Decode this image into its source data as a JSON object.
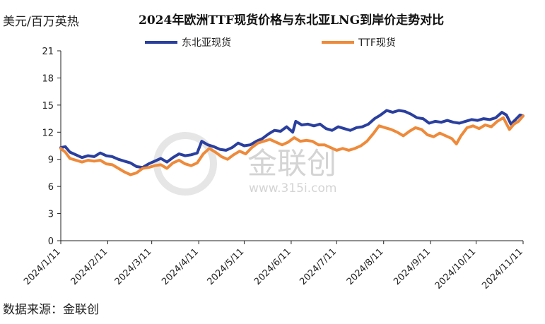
{
  "title": "2024年欧洲TTF现货价格与东北亚LNG到岸价走势对比",
  "unit_label": "美元/百万英热",
  "source": "数据来源：金联创",
  "watermark": {
    "name": "金联创",
    "url": "www.315i.com"
  },
  "colors": {
    "series1": "#2a3f9e",
    "series2": "#ee8a3a",
    "axis": "#222222",
    "watermark": "#cfcfcf"
  },
  "chart_data": {
    "type": "line",
    "title": "2024年欧洲TTF现货价格与东北亚LNG到岸价走势对比",
    "ylabel": "美元/百万英热",
    "xlabel": "",
    "ylim": [
      0,
      21
    ],
    "yticks": [
      0,
      3,
      6,
      9,
      12,
      15,
      18,
      21
    ],
    "xlim": [
      "2024-01-11",
      "2024-11-11"
    ],
    "xticks": [
      "2024/1/11",
      "2024/2/11",
      "2024/3/11",
      "2024/4/11",
      "2024/5/11",
      "2024/6/11",
      "2024/7/11",
      "2024/8/11",
      "2024/9/11",
      "2024/10/11",
      "2024/11/11"
    ],
    "grid": false,
    "legend_position": "top",
    "series": [
      {
        "name": "东北亚现货",
        "color": "#2a3f9e",
        "points": [
          [
            "2024-01-11",
            10.3
          ],
          [
            "2024-01-14",
            10.4
          ],
          [
            "2024-01-17",
            9.8
          ],
          [
            "2024-01-21",
            9.5
          ],
          [
            "2024-01-25",
            9.2
          ],
          [
            "2024-01-29",
            9.4
          ],
          [
            "2024-02-02",
            9.3
          ],
          [
            "2024-02-06",
            9.7
          ],
          [
            "2024-02-10",
            9.4
          ],
          [
            "2024-02-14",
            9.3
          ],
          [
            "2024-02-18",
            9.0
          ],
          [
            "2024-02-22",
            8.8
          ],
          [
            "2024-02-26",
            8.6
          ],
          [
            "2024-03-01",
            8.2
          ],
          [
            "2024-03-05",
            8.1
          ],
          [
            "2024-03-09",
            8.5
          ],
          [
            "2024-03-13",
            8.8
          ],
          [
            "2024-03-17",
            9.1
          ],
          [
            "2024-03-21",
            8.7
          ],
          [
            "2024-03-25",
            9.2
          ],
          [
            "2024-03-29",
            9.6
          ],
          [
            "2024-04-02",
            9.4
          ],
          [
            "2024-04-06",
            9.5
          ],
          [
            "2024-04-10",
            9.7
          ],
          [
            "2024-04-13",
            11.0
          ],
          [
            "2024-04-17",
            10.6
          ],
          [
            "2024-04-21",
            10.4
          ],
          [
            "2024-04-25",
            10.1
          ],
          [
            "2024-04-29",
            10.0
          ],
          [
            "2024-05-03",
            10.3
          ],
          [
            "2024-05-07",
            10.8
          ],
          [
            "2024-05-11",
            10.5
          ],
          [
            "2024-05-15",
            10.6
          ],
          [
            "2024-05-19",
            11.0
          ],
          [
            "2024-05-23",
            11.3
          ],
          [
            "2024-05-27",
            11.8
          ],
          [
            "2024-05-31",
            12.2
          ],
          [
            "2024-06-04",
            12.1
          ],
          [
            "2024-06-08",
            12.6
          ],
          [
            "2024-06-12",
            12.0
          ],
          [
            "2024-06-14",
            13.2
          ],
          [
            "2024-06-18",
            12.8
          ],
          [
            "2024-06-22",
            12.9
          ],
          [
            "2024-06-26",
            12.7
          ],
          [
            "2024-06-30",
            12.9
          ],
          [
            "2024-07-04",
            12.4
          ],
          [
            "2024-07-08",
            12.2
          ],
          [
            "2024-07-12",
            12.6
          ],
          [
            "2024-07-16",
            12.4
          ],
          [
            "2024-07-20",
            12.2
          ],
          [
            "2024-07-24",
            12.5
          ],
          [
            "2024-07-28",
            12.6
          ],
          [
            "2024-08-01",
            12.9
          ],
          [
            "2024-08-05",
            13.5
          ],
          [
            "2024-08-09",
            13.9
          ],
          [
            "2024-08-13",
            14.4
          ],
          [
            "2024-08-17",
            14.2
          ],
          [
            "2024-08-21",
            14.4
          ],
          [
            "2024-08-25",
            14.3
          ],
          [
            "2024-08-29",
            14.0
          ],
          [
            "2024-09-02",
            13.6
          ],
          [
            "2024-09-06",
            13.5
          ],
          [
            "2024-09-10",
            13.0
          ],
          [
            "2024-09-14",
            13.2
          ],
          [
            "2024-09-18",
            13.1
          ],
          [
            "2024-09-22",
            13.3
          ],
          [
            "2024-09-26",
            13.1
          ],
          [
            "2024-09-30",
            13.0
          ],
          [
            "2024-10-04",
            13.2
          ],
          [
            "2024-10-08",
            13.4
          ],
          [
            "2024-10-12",
            13.3
          ],
          [
            "2024-10-16",
            13.5
          ],
          [
            "2024-10-20",
            13.4
          ],
          [
            "2024-10-24",
            13.6
          ],
          [
            "2024-10-28",
            14.2
          ],
          [
            "2024-10-31",
            13.9
          ],
          [
            "2024-11-03",
            12.9
          ],
          [
            "2024-11-06",
            13.4
          ],
          [
            "2024-11-09",
            13.9
          ],
          [
            "2024-11-11",
            13.8
          ]
        ]
      },
      {
        "name": "TTF现货",
        "color": "#ee8a3a",
        "points": [
          [
            "2024-01-11",
            10.2
          ],
          [
            "2024-01-14",
            9.8
          ],
          [
            "2024-01-17",
            9.1
          ],
          [
            "2024-01-21",
            8.9
          ],
          [
            "2024-01-25",
            8.7
          ],
          [
            "2024-01-29",
            8.9
          ],
          [
            "2024-02-02",
            8.8
          ],
          [
            "2024-02-06",
            8.9
          ],
          [
            "2024-02-10",
            8.5
          ],
          [
            "2024-02-14",
            8.4
          ],
          [
            "2024-02-18",
            8.0
          ],
          [
            "2024-02-22",
            7.6
          ],
          [
            "2024-02-26",
            7.3
          ],
          [
            "2024-03-01",
            7.5
          ],
          [
            "2024-03-05",
            8.0
          ],
          [
            "2024-03-09",
            8.1
          ],
          [
            "2024-03-13",
            8.3
          ],
          [
            "2024-03-17",
            8.4
          ],
          [
            "2024-03-21",
            8.0
          ],
          [
            "2024-03-25",
            8.6
          ],
          [
            "2024-03-29",
            8.9
          ],
          [
            "2024-04-02",
            8.5
          ],
          [
            "2024-04-06",
            8.3
          ],
          [
            "2024-04-10",
            8.6
          ],
          [
            "2024-04-14",
            9.6
          ],
          [
            "2024-04-18",
            10.2
          ],
          [
            "2024-04-22",
            9.8
          ],
          [
            "2024-04-26",
            9.3
          ],
          [
            "2024-04-30",
            9.0
          ],
          [
            "2024-05-04",
            9.5
          ],
          [
            "2024-05-08",
            9.9
          ],
          [
            "2024-05-12",
            9.6
          ],
          [
            "2024-05-16",
            10.3
          ],
          [
            "2024-05-20",
            10.8
          ],
          [
            "2024-05-24",
            11.0
          ],
          [
            "2024-05-28",
            11.2
          ],
          [
            "2024-06-01",
            10.9
          ],
          [
            "2024-06-05",
            10.6
          ],
          [
            "2024-06-09",
            10.9
          ],
          [
            "2024-06-13",
            11.4
          ],
          [
            "2024-06-17",
            11.0
          ],
          [
            "2024-06-21",
            11.1
          ],
          [
            "2024-06-25",
            11.0
          ],
          [
            "2024-06-29",
            10.6
          ],
          [
            "2024-07-03",
            10.6
          ],
          [
            "2024-07-07",
            10.3
          ],
          [
            "2024-07-11",
            10.0
          ],
          [
            "2024-07-15",
            10.2
          ],
          [
            "2024-07-19",
            10.0
          ],
          [
            "2024-07-23",
            10.2
          ],
          [
            "2024-07-27",
            10.5
          ],
          [
            "2024-07-31",
            11.0
          ],
          [
            "2024-08-04",
            11.8
          ],
          [
            "2024-08-08",
            12.7
          ],
          [
            "2024-08-12",
            12.5
          ],
          [
            "2024-08-16",
            12.3
          ],
          [
            "2024-08-20",
            12.0
          ],
          [
            "2024-08-24",
            11.6
          ],
          [
            "2024-08-28",
            12.1
          ],
          [
            "2024-09-01",
            12.5
          ],
          [
            "2024-09-05",
            12.3
          ],
          [
            "2024-09-09",
            11.7
          ],
          [
            "2024-09-13",
            11.5
          ],
          [
            "2024-09-17",
            11.9
          ],
          [
            "2024-09-21",
            11.6
          ],
          [
            "2024-09-25",
            11.3
          ],
          [
            "2024-09-28",
            10.7
          ],
          [
            "2024-10-01",
            11.6
          ],
          [
            "2024-10-05",
            12.5
          ],
          [
            "2024-10-09",
            12.7
          ],
          [
            "2024-10-13",
            12.4
          ],
          [
            "2024-10-17",
            12.8
          ],
          [
            "2024-10-21",
            12.6
          ],
          [
            "2024-10-25",
            13.2
          ],
          [
            "2024-10-29",
            13.6
          ],
          [
            "2024-11-02",
            12.3
          ],
          [
            "2024-11-05",
            12.9
          ],
          [
            "2024-11-08",
            13.2
          ],
          [
            "2024-11-11",
            13.8
          ]
        ]
      }
    ]
  }
}
